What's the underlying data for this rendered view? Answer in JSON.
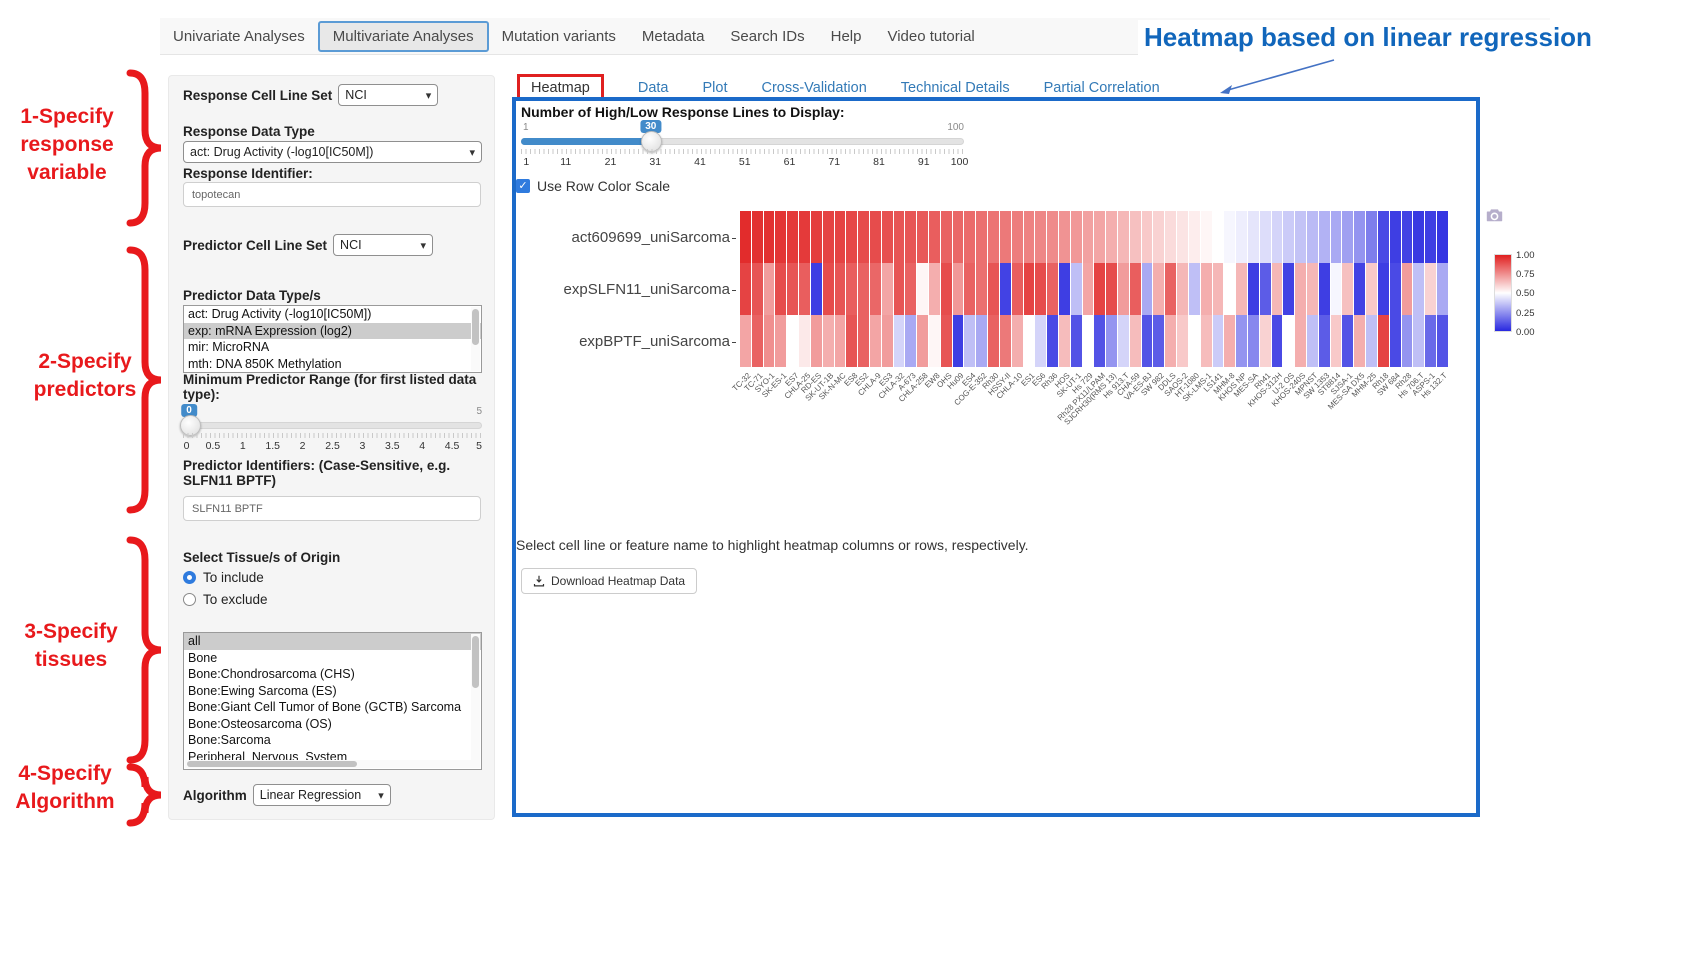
{
  "nav": {
    "items": [
      {
        "label": "Univariate Analyses",
        "active": false
      },
      {
        "label": "Multivariate Analyses",
        "active": true
      },
      {
        "label": "Mutation variants",
        "active": false
      },
      {
        "label": "Metadata",
        "active": false
      },
      {
        "label": "Search IDs",
        "active": false
      },
      {
        "label": "Help",
        "active": false
      },
      {
        "label": "Video tutorial",
        "active": false
      }
    ]
  },
  "annotations": {
    "heading": "Heatmap based on linear regression",
    "steps": [
      {
        "lines": [
          "1-Specify",
          "response",
          "variable"
        ]
      },
      {
        "lines": [
          "2-Specify",
          "predictors"
        ]
      },
      {
        "lines": [
          "3-Specify",
          "tissues"
        ]
      },
      {
        "lines": [
          "4-Specify",
          "Algorithm"
        ]
      }
    ],
    "accent_red": "#e8191c",
    "accent_blue": "#1166bb"
  },
  "sidebar": {
    "response_cell_line_set_label": "Response Cell Line Set",
    "response_cell_line_set_value": "NCI",
    "response_data_type_label": "Response Data Type",
    "response_data_type_value": "act: Drug Activity (-log10[IC50M])",
    "response_identifier_label": "Response Identifier:",
    "response_identifier_value": "topotecan",
    "predictor_cell_line_set_label": "Predictor Cell Line Set",
    "predictor_cell_line_set_value": "NCI",
    "predictor_data_types_label": "Predictor Data Type/s",
    "predictor_data_types_options": [
      {
        "label": "act: Drug Activity (-log10[IC50M])",
        "selected": false
      },
      {
        "label": "exp: mRNA Expression (log2)",
        "selected": true
      },
      {
        "label": "mir: MicroRNA",
        "selected": false
      },
      {
        "label": "mth: DNA 850K Methylation",
        "selected": false
      }
    ],
    "min_predictor_range_label": "Minimum Predictor Range (for first listed data type):",
    "min_range_slider": {
      "value": "0",
      "min": 0,
      "max": 5,
      "max_label": "5",
      "ticks": [
        "0",
        "0.5",
        "1",
        "1.5",
        "2",
        "2.5",
        "3",
        "3.5",
        "4",
        "4.5",
        "5"
      ]
    },
    "predictor_identifiers_label": "Predictor Identifiers: (Case-Sensitive, e.g. SLFN11 BPTF)",
    "predictor_identifiers_value": "SLFN11 BPTF",
    "tissue_label": "Select Tissue/s of Origin",
    "tissue_radios": [
      {
        "label": "To include",
        "selected": true
      },
      {
        "label": "To exclude",
        "selected": false
      }
    ],
    "tissue_options": [
      {
        "label": "all",
        "selected": true
      },
      {
        "label": "Bone",
        "selected": false
      },
      {
        "label": "Bone:Chondrosarcoma (CHS)",
        "selected": false
      },
      {
        "label": "Bone:Ewing Sarcoma (ES)",
        "selected": false
      },
      {
        "label": "Bone:Giant Cell Tumor of Bone (GCTB) Sarcoma",
        "selected": false
      },
      {
        "label": "Bone:Osteosarcoma (OS)",
        "selected": false
      },
      {
        "label": "Bone:Sarcoma",
        "selected": false
      },
      {
        "label": "Peripheral_Nervous_System",
        "selected": false
      }
    ],
    "algorithm_label": "Algorithm",
    "algorithm_value": "Linear Regression"
  },
  "panel": {
    "tabs": [
      {
        "label": "Heatmap",
        "active": true
      },
      {
        "label": "Data",
        "active": false
      },
      {
        "label": "Plot",
        "active": false
      },
      {
        "label": "Cross-Validation",
        "active": false
      },
      {
        "label": "Technical Details",
        "active": false
      },
      {
        "label": "Partial Correlation",
        "active": false
      }
    ],
    "slider": {
      "label": "Number of High/Low Response Lines to Display:",
      "min_label": "1",
      "max_label": "100",
      "value": "30",
      "min": 1,
      "max": 100,
      "ticks": [
        "1",
        "11",
        "21",
        "31",
        "41",
        "51",
        "61",
        "71",
        "81",
        "91",
        "100"
      ]
    },
    "checkbox_label": "Use Row Color Scale",
    "checkbox_checked": true,
    "note": "Select cell line or feature name to highlight heatmap columns or rows, respectively.",
    "download_label": "Download Heatmap Data"
  },
  "chart_data": {
    "type": "heatmap",
    "rows": [
      "act609699_uniSarcoma",
      "expSLFN11_uniSarcoma",
      "expBPTF_uniSarcoma"
    ],
    "columns": [
      "TC-32",
      "TC-71",
      "SYO-1",
      "SK-ES-1",
      "ES7",
      "CHLA-25",
      "RD-ES",
      "SK-UT-1B",
      "SK-N-MC",
      "ES8",
      "ES2",
      "CHLA-9",
      "ES3",
      "CHLA-32",
      "A-673",
      "CHLA-258",
      "EW8",
      "OHS",
      "Hu09",
      "ES4",
      "COG-E-352",
      "Rh30",
      "HSSY-II",
      "CHLA-10",
      "ES1",
      "ES6",
      "Rh36",
      "HOS",
      "SK-UT-1",
      "Hs 729",
      "Rh28 PX11/LPAM",
      "SJCRH30(RMS 13)",
      "Hs 913.T",
      "CHA-59",
      "VA-ES-BJ",
      "SW 982",
      "DDLS",
      "SAOS-2",
      "HT-1080",
      "SK-LMS-1",
      "LS141",
      "MHM-8",
      "KHOS NP",
      "MES-SA",
      "Rh41",
      "KHOS-312H",
      "U-2 OS",
      "KHOS-240S",
      "MPNST",
      "SW 1353",
      "ST8814",
      "SJSA-1",
      "MES-SA DX5",
      "MHM-25",
      "Rh18",
      "SW 684",
      "Rh28",
      "Hs 706.T",
      "ASPS-1",
      "Hs 132.T"
    ],
    "values": [
      [
        0.97,
        0.96,
        0.96,
        0.95,
        0.94,
        0.94,
        0.93,
        0.92,
        0.92,
        0.91,
        0.9,
        0.9,
        0.89,
        0.88,
        0.88,
        0.87,
        0.86,
        0.85,
        0.84,
        0.83,
        0.82,
        0.81,
        0.8,
        0.79,
        0.78,
        0.77,
        0.76,
        0.74,
        0.73,
        0.71,
        0.7,
        0.68,
        0.66,
        0.64,
        0.62,
        0.6,
        0.58,
        0.56,
        0.54,
        0.52,
        0.5,
        0.48,
        0.46,
        0.44,
        0.42,
        0.4,
        0.38,
        0.36,
        0.34,
        0.32,
        0.3,
        0.28,
        0.25,
        0.2,
        0.08,
        0.05,
        0.06,
        0.04,
        0.05,
        0.03
      ],
      [
        0.92,
        0.88,
        0.72,
        0.9,
        0.88,
        0.86,
        0.05,
        0.9,
        0.88,
        0.86,
        0.85,
        0.84,
        0.7,
        0.88,
        0.85,
        0.52,
        0.68,
        0.9,
        0.73,
        0.85,
        0.82,
        0.88,
        0.06,
        0.86,
        0.92,
        0.9,
        0.85,
        0.05,
        0.35,
        0.7,
        0.92,
        0.9,
        0.72,
        0.86,
        0.3,
        0.68,
        0.85,
        0.66,
        0.35,
        0.68,
        0.66,
        0.5,
        0.66,
        0.05,
        0.12,
        0.66,
        0.06,
        0.68,
        0.66,
        0.05,
        0.48,
        0.64,
        0.06,
        0.62,
        0.05,
        0.08,
        0.72,
        0.35,
        0.6,
        0.3
      ],
      [
        0.7,
        0.85,
        0.75,
        0.72,
        0.5,
        0.55,
        0.72,
        0.68,
        0.7,
        0.88,
        0.85,
        0.7,
        0.72,
        0.4,
        0.3,
        0.72,
        0.52,
        0.88,
        0.05,
        0.35,
        0.3,
        0.85,
        0.8,
        0.68,
        0.5,
        0.4,
        0.08,
        0.65,
        0.1,
        0.5,
        0.1,
        0.25,
        0.4,
        0.65,
        0.1,
        0.12,
        0.68,
        0.62,
        0.5,
        0.65,
        0.38,
        0.68,
        0.25,
        0.22,
        0.6,
        0.08,
        0.5,
        0.68,
        0.35,
        0.12,
        0.62,
        0.1,
        0.68,
        0.35,
        0.92,
        0.08,
        0.25,
        0.35,
        0.15,
        0.1
      ]
    ],
    "colorscale": {
      "low": "#2828e0",
      "mid": "#ffffff",
      "high": "#e01f1f",
      "min": 0,
      "max": 1
    },
    "colorbar_ticks": [
      "1.00",
      "0.75",
      "0.50",
      "0.25",
      "0.00"
    ]
  }
}
